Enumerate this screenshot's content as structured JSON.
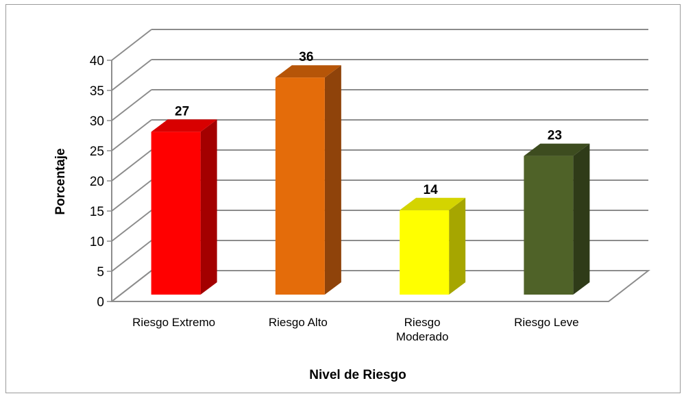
{
  "chart_data": {
    "type": "bar",
    "title": "",
    "xlabel": "Nivel de Riesgo",
    "ylabel": "Porcentaje",
    "ylim": [
      0,
      40
    ],
    "yticks": [
      0,
      5,
      10,
      15,
      20,
      25,
      30,
      35,
      40
    ],
    "grid": true,
    "categories": [
      [
        "Riesgo Extremo"
      ],
      [
        "Riesgo Alto"
      ],
      [
        "Riesgo",
        "Moderado"
      ],
      [
        "Riesgo Leve"
      ]
    ],
    "values": [
      27,
      36,
      14,
      23
    ],
    "colors": [
      {
        "front": "#ff0000",
        "side": "#a30000",
        "top": "#d80000"
      },
      {
        "front": "#e46c0a",
        "side": "#8f430a",
        "top": "#b65508"
      },
      {
        "front": "#ffff00",
        "side": "#a6a600",
        "top": "#d4d400"
      },
      {
        "front": "#4f6228",
        "side": "#2f3b18",
        "top": "#3d4c1f"
      }
    ]
  }
}
